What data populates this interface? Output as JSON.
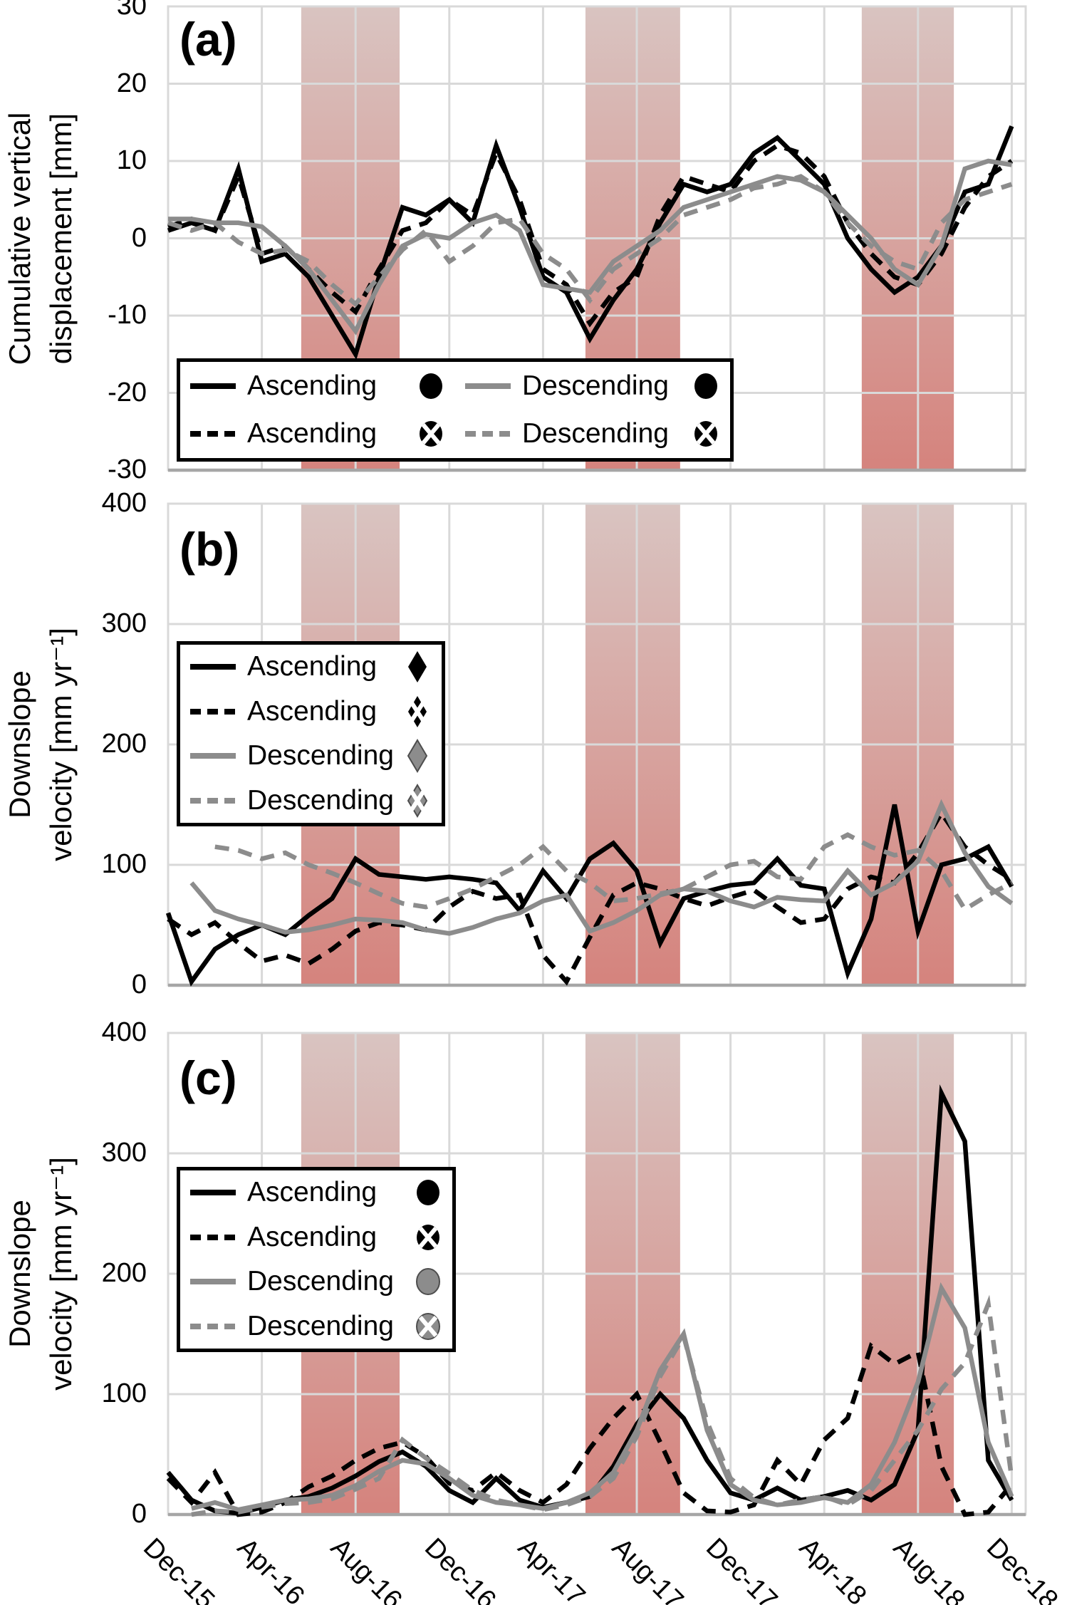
{
  "figure": {
    "background": "#ffffff",
    "colors": {
      "black_series": "#000000",
      "gray_series": "#8c8c8c",
      "gridline": "#d9d9d9",
      "axis_line": "#a6a6a6",
      "band_top": "#d9c4c1",
      "band_bottom": "#d5837d",
      "legend_border": "#000000",
      "text": "#000000"
    }
  },
  "x_axis": {
    "unit": "month (monthly samples from Dec-2015)",
    "tick_labels": [
      "Dec-15",
      "Apr-16",
      "Aug-16",
      "Dec-16",
      "Apr-17",
      "Aug-17",
      "Dec-17",
      "Apr-18",
      "Aug-18",
      "Dec-18"
    ],
    "tick_months": [
      0,
      4,
      8,
      12,
      16,
      20,
      24,
      28,
      32,
      36
    ],
    "months_max": 36.6
  },
  "bands_months": [
    [
      5.68,
      9.88
    ],
    [
      17.81,
      21.85
    ],
    [
      29.6,
      33.53
    ]
  ],
  "chart_data": [
    {
      "id": "a",
      "type": "line",
      "panel_label": "(a)",
      "ylabel_lines": [
        "Cumulative vertical",
        "displacement [mm]"
      ],
      "ylim": [
        -30,
        30
      ],
      "yticks": [
        30,
        20,
        10,
        0,
        -10,
        -20,
        -30
      ],
      "grid": true,
      "legend": {
        "columns": 2,
        "entries": [
          {
            "label": "Ascending",
            "line": "solid",
            "line_color": "black",
            "marker": "circle",
            "marker_color": "black"
          },
          {
            "label": "Ascending",
            "line": "dashed",
            "line_color": "black",
            "marker": "circle-x",
            "marker_color": "black"
          },
          {
            "label": "Descending",
            "line": "solid",
            "line_color": "gray",
            "marker": "circle",
            "marker_color": "black"
          },
          {
            "label": "Descending",
            "line": "dashed",
            "line_color": "gray",
            "marker": "circle-x",
            "marker_color": "black"
          }
        ]
      },
      "series": [
        {
          "name": "Ascending",
          "style": "solid",
          "color_key": "black",
          "marker": "circle",
          "values": [
            1,
            2,
            1,
            9,
            -3,
            -2,
            -5,
            -10,
            -15,
            -5,
            4,
            3,
            5,
            2,
            12,
            4,
            -5,
            -7,
            -13,
            -8,
            -4,
            2,
            7,
            6,
            7,
            11,
            13,
            10,
            7,
            0,
            -4,
            -7,
            -5,
            -1,
            6,
            7,
            14.5
          ]
        },
        {
          "name": "Ascending",
          "style": "dashed",
          "color_key": "black",
          "marker": "circle-x",
          "values": [
            1.5,
            2.5,
            1,
            8,
            -2,
            -1,
            -4,
            -7,
            -9.5,
            -4,
            1,
            2,
            5,
            3,
            11,
            5,
            -4,
            -6,
            -11,
            -7,
            -5,
            3,
            8,
            7,
            6,
            10,
            12,
            11,
            8,
            2,
            -2,
            -5,
            -6,
            -2,
            4,
            8,
            10
          ]
        },
        {
          "name": "Descending",
          "style": "solid",
          "color_key": "gray",
          "marker": "circle",
          "values": [
            2.5,
            2.5,
            2,
            2,
            1.5,
            -1,
            -4,
            -8,
            -12,
            -6,
            -1,
            0.5,
            0,
            2,
            3,
            1,
            -6,
            -6.5,
            -7,
            -3,
            -1,
            1,
            4,
            5,
            6,
            7,
            8,
            7.5,
            6,
            3,
            0,
            -4,
            -6,
            -1,
            9,
            10,
            9.5
          ]
        },
        {
          "name": "Descending",
          "style": "dashed",
          "color_key": "gray",
          "marker": "circle-x",
          "values": [
            2,
            1,
            2,
            -0.5,
            -2,
            -1.5,
            -3,
            -6,
            -8.5,
            -5,
            -1.5,
            1,
            -3,
            -1,
            2,
            2.5,
            -2,
            -4,
            -8,
            -4,
            -2,
            0,
            3,
            4,
            5,
            6.5,
            7,
            8,
            6,
            2,
            -1,
            -3,
            -4,
            2,
            5,
            6,
            7
          ]
        }
      ]
    },
    {
      "id": "b",
      "type": "line",
      "panel_label": "(b)",
      "ylabel_lines": [
        "Downslope",
        "velocity [mm yr⁻¹]"
      ],
      "ylim": [
        0,
        400
      ],
      "yticks": [
        400,
        300,
        200,
        100,
        0
      ],
      "grid": true,
      "legend": {
        "columns": 1,
        "entries": [
          {
            "label": "Ascending",
            "line": "solid",
            "line_color": "black",
            "marker": "diamond",
            "marker_color": "black"
          },
          {
            "label": "Ascending",
            "line": "dashed",
            "line_color": "black",
            "marker": "diamond-x",
            "marker_color": "black"
          },
          {
            "label": "Descending",
            "line": "solid",
            "line_color": "gray",
            "marker": "diamond",
            "marker_color": "gray"
          },
          {
            "label": "Descending",
            "line": "dashed",
            "line_color": "gray",
            "marker": "diamond-x",
            "marker_color": "gray"
          }
        ]
      },
      "series": [
        {
          "name": "Ascending",
          "style": "solid",
          "color_key": "black",
          "marker": "diamond",
          "values": [
            60,
            3,
            30,
            42,
            50,
            42,
            58,
            72,
            105,
            92,
            90,
            88,
            90,
            88,
            85,
            62,
            95,
            72,
            105,
            118,
            95,
            35,
            72,
            78,
            83,
            85,
            105,
            83,
            80,
            10,
            55,
            150,
            45,
            100,
            105,
            115,
            82
          ]
        },
        {
          "name": "Ascending",
          "style": "dashed",
          "color_key": "black",
          "marker": "diamond-x",
          "values": [
            55,
            42,
            52,
            35,
            20,
            25,
            18,
            30,
            45,
            52,
            50,
            46,
            65,
            78,
            72,
            75,
            25,
            3,
            40,
            75,
            85,
            80,
            72,
            66,
            73,
            79,
            65,
            52,
            55,
            80,
            90,
            85,
            110,
            143,
            115,
            100,
            88
          ]
        },
        {
          "name": "Descending",
          "style": "solid",
          "color_key": "gray",
          "marker": "diamond",
          "values": [
            null,
            85,
            62,
            55,
            50,
            44,
            46,
            50,
            55,
            54,
            52,
            46,
            43,
            48,
            55,
            60,
            70,
            75,
            45,
            52,
            62,
            75,
            80,
            78,
            70,
            65,
            73,
            71,
            70,
            95,
            75,
            85,
            103,
            150,
            110,
            82,
            68
          ]
        },
        {
          "name": "Descending",
          "style": "dashed",
          "color_key": "gray",
          "marker": "diamond-x",
          "values": [
            null,
            null,
            115,
            112,
            105,
            110,
            100,
            93,
            85,
            76,
            68,
            65,
            72,
            80,
            90,
            100,
            115,
            95,
            85,
            70,
            72,
            76,
            80,
            90,
            100,
            103,
            90,
            88,
            115,
            125,
            115,
            108,
            112,
            95,
            63,
            75,
            85
          ]
        }
      ]
    },
    {
      "id": "c",
      "type": "line",
      "panel_label": "(c)",
      "ylabel_lines": [
        "Downslope",
        "velocity [mm yr⁻¹]"
      ],
      "ylim": [
        0,
        400
      ],
      "yticks": [
        400,
        300,
        200,
        100,
        0
      ],
      "grid": true,
      "legend": {
        "columns": 1,
        "entries": [
          {
            "label": "Ascending",
            "line": "solid",
            "line_color": "black",
            "marker": "circle",
            "marker_color": "black"
          },
          {
            "label": "Ascending",
            "line": "dashed",
            "line_color": "black",
            "marker": "circle-x",
            "marker_color": "black"
          },
          {
            "label": "Descending",
            "line": "solid",
            "line_color": "gray",
            "marker": "circle",
            "marker_color": "gray"
          },
          {
            "label": "Descending",
            "line": "dashed",
            "line_color": "gray",
            "marker": "circle-x",
            "marker_color": "gray"
          }
        ]
      },
      "series": [
        {
          "name": "Ascending",
          "style": "solid",
          "color_key": "black",
          "marker": "circle",
          "values": [
            35,
            12,
            3,
            1,
            6,
            12,
            15,
            22,
            32,
            44,
            52,
            40,
            20,
            10,
            30,
            12,
            6,
            10,
            15,
            40,
            75,
            100,
            80,
            45,
            18,
            12,
            22,
            12,
            15,
            20,
            12,
            25,
            70,
            350,
            310,
            45,
            12
          ]
        },
        {
          "name": "Ascending",
          "style": "dashed",
          "color_key": "black",
          "marker": "circle-x",
          "values": [
            30,
            10,
            35,
            0,
            2,
            10,
            23,
            32,
            45,
            55,
            60,
            48,
            26,
            20,
            35,
            20,
            10,
            25,
            55,
            80,
            100,
            60,
            18,
            3,
            2,
            8,
            45,
            25,
            62,
            80,
            140,
            125,
            135,
            40,
            0,
            2,
            25
          ]
        },
        {
          "name": "Descending",
          "style": "solid",
          "color_key": "gray",
          "marker": "circle",
          "values": [
            null,
            5,
            10,
            4,
            8,
            12,
            13,
            16,
            24,
            36,
            45,
            42,
            30,
            16,
            10,
            8,
            5,
            10,
            18,
            35,
            70,
            120,
            150,
            70,
            25,
            12,
            8,
            10,
            14,
            10,
            25,
            60,
            110,
            188,
            155,
            60,
            15
          ]
        },
        {
          "name": "Descending",
          "style": "dashed",
          "color_key": "gray",
          "marker": "circle-x",
          "values": [
            null,
            0,
            3,
            2,
            6,
            9,
            10,
            13,
            21,
            30,
            62,
            47,
            34,
            20,
            12,
            8,
            4,
            8,
            15,
            30,
            65,
            115,
            148,
            77,
            30,
            14,
            8,
            12,
            15,
            8,
            20,
            45,
            70,
            104,
            126,
            175,
            30
          ]
        }
      ]
    }
  ]
}
